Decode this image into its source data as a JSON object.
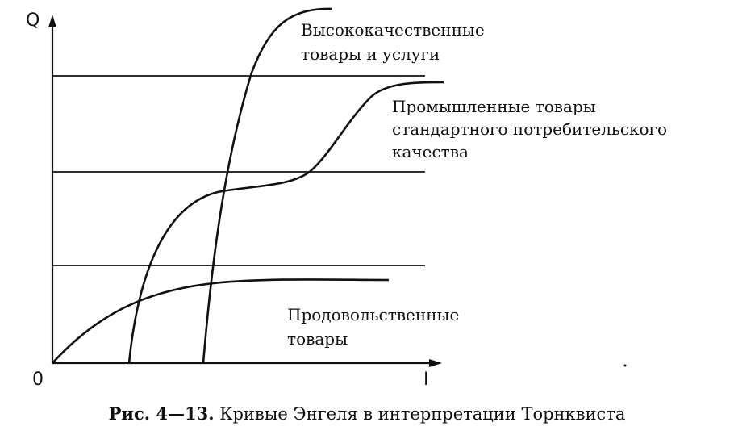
{
  "chart_data": {
    "type": "line",
    "ylabel": "Q",
    "xlabel": "I",
    "origin_label": "0",
    "title_prefix": "Рис. 4—13.",
    "title": "Кривые Энгеля в интерпретации Торнквиста",
    "grid": false,
    "series": [
      {
        "name": "Продовольственные товары",
        "label_lines": [
          "Продовольственные",
          "товары"
        ]
      },
      {
        "name": "Промышленные товары стандартного потребительского качества",
        "label_lines": [
          "Промышленные товары",
          "стандартного потребительского",
          "качества"
        ]
      },
      {
        "name": "Высококачественные товары и услуги",
        "label_lines": [
          "Высококачественные",
          "товары и услуги"
        ]
      }
    ]
  },
  "colors": {
    "ink": "#111111",
    "background": "#ffffff"
  }
}
